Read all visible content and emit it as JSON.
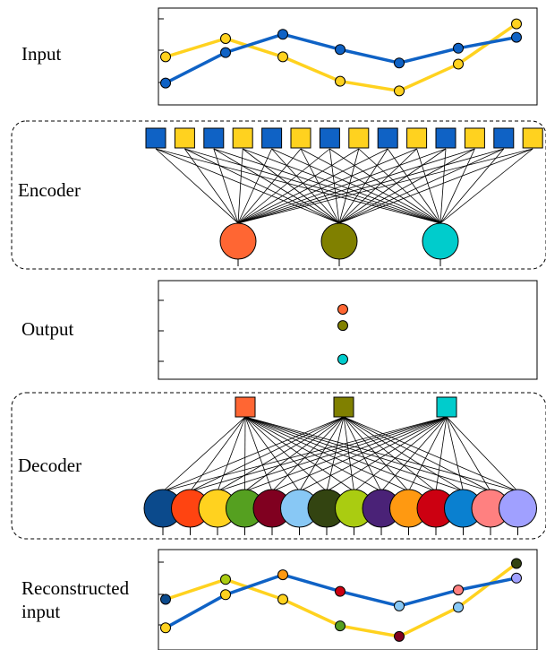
{
  "labels": {
    "input": "Input",
    "encoder": "Encoder",
    "output": "Output",
    "decoder": "Decoder",
    "reconstructed_line1": "Reconstructed",
    "reconstructed_line2": "input"
  },
  "colors": {
    "series_blue": "#0f62c5",
    "series_yellow": "#ffd21f",
    "latent": [
      "#ff6633",
      "#808000",
      "#00cccc"
    ],
    "recon_nodes": [
      "#0b4a8c",
      "#ff4411",
      "#ffd21f",
      "#55a020",
      "#800020",
      "#88c8f5",
      "#334411",
      "#aacc11",
      "#4a2277",
      "#ff9911",
      "#cc0011",
      "#0a80d0",
      "#ff8080",
      "#a0a0ff"
    ]
  },
  "input_series": {
    "blue": [
      0.05,
      0.55,
      0.85,
      0.6,
      0.38,
      0.62,
      0.8
    ],
    "yellow": [
      0.48,
      0.78,
      0.48,
      0.08,
      -0.08,
      0.36,
      1.02
    ]
  },
  "encoder_input_nodes": [
    "blue",
    "yellow",
    "blue",
    "yellow",
    "blue",
    "yellow",
    "blue",
    "yellow",
    "blue",
    "yellow",
    "blue",
    "yellow",
    "blue",
    "yellow"
  ],
  "latent_values": [
    0.78,
    0.56,
    0.1
  ],
  "reconstructed_series": {
    "blue": [
      0.05,
      0.55,
      0.85,
      0.6,
      0.38,
      0.62,
      0.8
    ],
    "yellow": [
      0.48,
      0.78,
      0.48,
      0.08,
      -0.08,
      0.36,
      1.02
    ],
    "blue_marker_colors": [
      "#ffd21f",
      "#ffd21f",
      "#ff9911",
      "#cc0011",
      "#88c8f5",
      "#ff8080",
      "#a0a0ff"
    ],
    "yellow_marker_colors": [
      "#0b4a8c",
      "#aacc11",
      "#ffd21f",
      "#55a020",
      "#800020",
      "#88c8f5",
      "#334411"
    ]
  }
}
